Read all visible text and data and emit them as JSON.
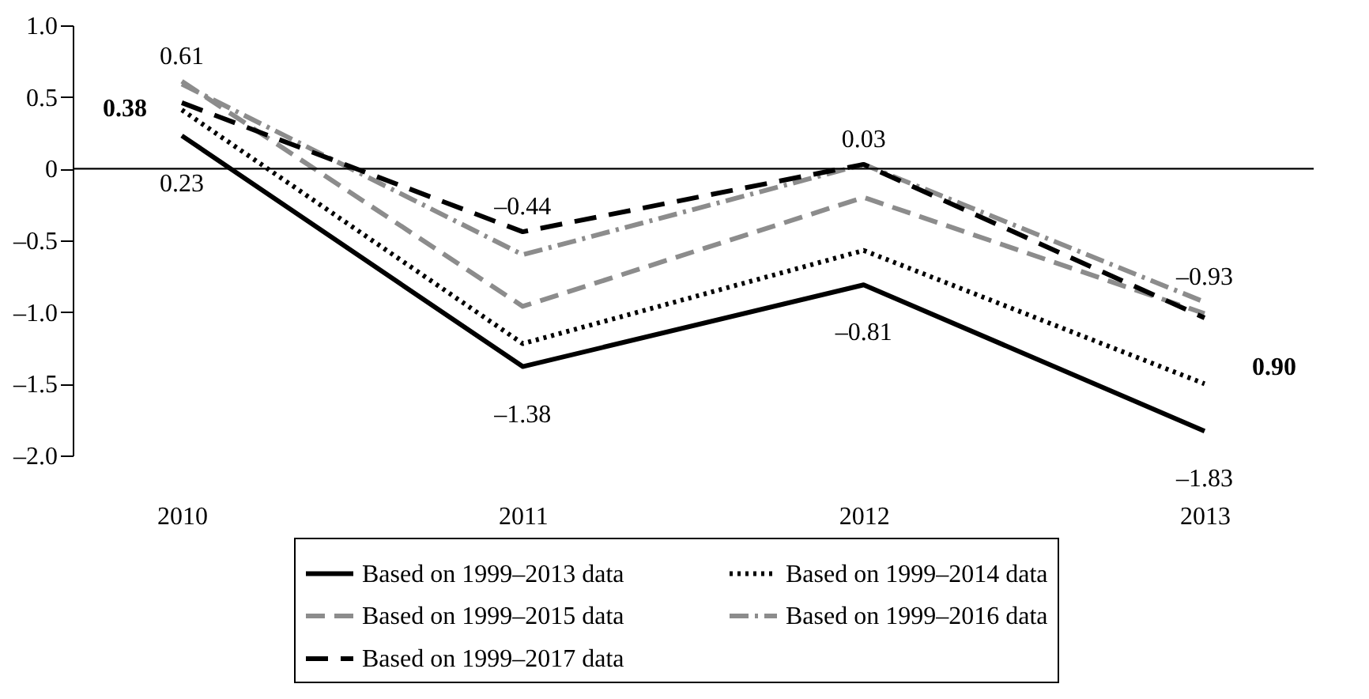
{
  "chart_data": {
    "type": "line",
    "categories": [
      "2010",
      "2011",
      "2012",
      "2013"
    ],
    "series": [
      {
        "name": "Based on 1999–2013 data",
        "color": "#000000",
        "line_style": "solid",
        "values": [
          0.23,
          -1.38,
          -0.81,
          -1.83
        ]
      },
      {
        "name": "Based on 1999–2014 data",
        "color": "#000000",
        "line_style": "dotted",
        "values": [
          0.41,
          -1.22,
          -0.57,
          -1.5
        ]
      },
      {
        "name": "Based on 1999–2015 data",
        "color": "#8c8c8c",
        "line_style": "dashed",
        "values": [
          0.61,
          -0.96,
          -0.2,
          -1.01
        ]
      },
      {
        "name": "Based on 1999–2016 data",
        "color": "#8c8c8c",
        "line_style": "dashdot",
        "values": [
          0.59,
          -0.6,
          0.03,
          -0.93
        ]
      },
      {
        "name": "Based on 1999–2017 data",
        "color": "#000000",
        "line_style": "longdash",
        "values": [
          0.46,
          -0.44,
          0.03,
          -1.04
        ]
      }
    ],
    "ylim": [
      -2.0,
      1.0
    ],
    "yticks": [
      {
        "value": -2.0,
        "label": "–2.0"
      },
      {
        "value": -1.5,
        "label": "–1.5"
      },
      {
        "value": -1.0,
        "label": "–1.0"
      },
      {
        "value": -0.5,
        "label": "–0.5"
      },
      0,
      0.5,
      {
        "value": 1.0,
        "label": "1.0"
      }
    ],
    "ref_lines": [
      {
        "axis": "y",
        "value": 0,
        "color": "#000000"
      }
    ],
    "annotations": [
      {
        "text": "0.61",
        "x": "2010",
        "y": 0.61
      },
      {
        "text": "0.23",
        "x": "2010",
        "y": 0.23
      },
      "0.38",
      {
        "text": "–0.44",
        "x": "2011",
        "y": -0.44
      },
      {
        "text": "–1.38",
        "x": "2011",
        "y": -1.38
      },
      {
        "text": "0.03",
        "x": "2012",
        "y": 0.03
      },
      {
        "text": "–0.81",
        "x": "2012",
        "y": -0.81
      },
      {
        "text": "–0.93",
        "x": "2013",
        "y": -0.93
      },
      {
        "text": "–1.83",
        "x": "2013",
        "y": -1.83
      },
      "0.90"
    ],
    "grid": false,
    "legend": "bottom",
    "marker": "none"
  }
}
